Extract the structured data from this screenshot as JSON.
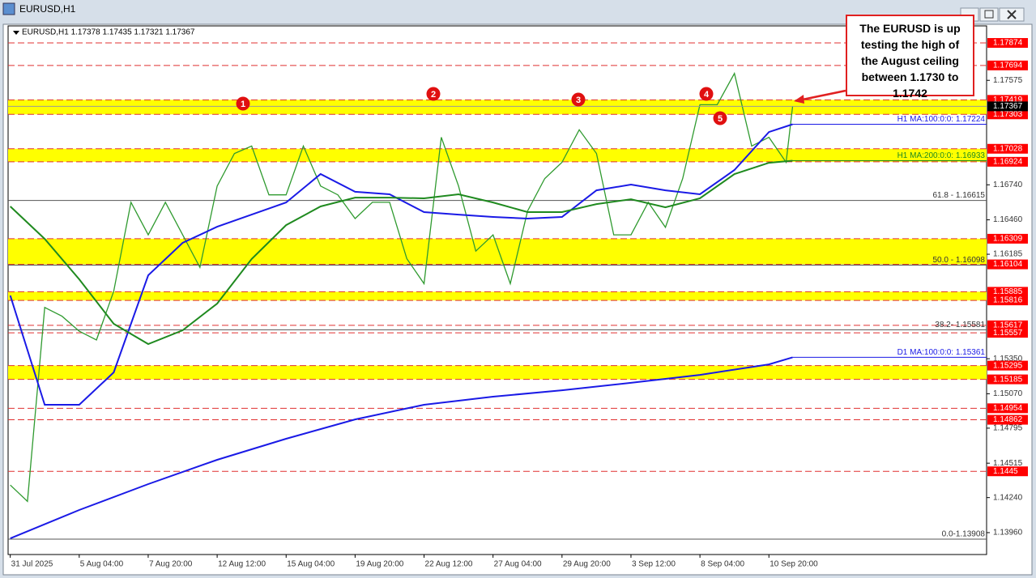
{
  "window_title": "EURUSD,H1",
  "chart_data": {
    "type": "line",
    "info": "EURUSD,H1  1.17378 1.17435 1.17321 1.17367",
    "xlim": [
      -2,
      906
    ],
    "ylim": [
      1.13785,
      1.1801
    ],
    "xticks": [
      {
        "value": 0,
        "label": "31 Jul 2025"
      },
      {
        "value": 64,
        "label": "5 Aug 04:00"
      },
      {
        "value": 128,
        "label": "7 Aug 20:00"
      },
      {
        "value": 192,
        "label": "12 Aug 12:00"
      },
      {
        "value": 256,
        "label": "15 Aug 04:00"
      },
      {
        "value": 320,
        "label": "19 Aug 20:00"
      },
      {
        "value": 384,
        "label": "22 Aug 12:00"
      },
      {
        "value": 448,
        "label": "27 Aug 04:00"
      },
      {
        "value": 512,
        "label": "29 Aug 20:00"
      },
      {
        "value": 576,
        "label": "3 Sep 12:00"
      },
      {
        "value": 640,
        "label": "8 Sep 04:00"
      },
      {
        "value": 704,
        "label": "10 Sep 20:00"
      }
    ],
    "yticks": [
      1.17575,
      {
        "value": 1.1674,
        "label": "1.16740"
      },
      {
        "value": 1.1646,
        "label": "1.16460"
      },
      1.16185,
      {
        "value": 1.1535,
        "label": "1.15350"
      },
      {
        "value": 1.1507,
        "label": "1.15070"
      },
      1.14795,
      1.14515,
      {
        "value": 1.1424,
        "label": "1.14240"
      },
      {
        "value": 1.1396,
        "label": "1.13960"
      }
    ],
    "current_price": 1.17367,
    "zones": [
      [
        1.17303,
        1.17419
      ],
      [
        1.16924,
        1.17028
      ],
      [
        1.16104,
        1.16309
      ],
      [
        1.15816,
        1.15885
      ],
      [
        1.15185,
        1.15295
      ]
    ],
    "lines": [
      1.17874,
      1.17694,
      1.15617,
      1.15557,
      1.14954,
      1.14862,
      1.1445
    ],
    "fib_levels": [
      {
        "value": 1.16615,
        "label": "61.8 - 1.16615"
      },
      {
        "value": 1.16098,
        "label": "50.0 - 1.16098"
      },
      {
        "value": 1.15581,
        "label": "38.2- 1.15581"
      },
      {
        "value": 1.13908,
        "label": "0.0-1.13908"
      }
    ],
    "series": [
      {
        "color": "#2f9a2f",
        "x": [
          0,
          16,
          32,
          48,
          64,
          80,
          96,
          112,
          128,
          144,
          160,
          176,
          192,
          208,
          224,
          240,
          256,
          272,
          288,
          304,
          320,
          336,
          352,
          368,
          384,
          400,
          416,
          432,
          448,
          464,
          480,
          496,
          512,
          528,
          544,
          560,
          576,
          592,
          608,
          624,
          640,
          656,
          672,
          688,
          704,
          720,
          726
        ],
        "values": [
          1.1434,
          1.1421,
          1.1576,
          1.1569,
          1.1557,
          1.155,
          1.1589,
          1.166,
          1.1634,
          1.166,
          1.1634,
          1.1608,
          1.1673,
          1.1699,
          1.1705,
          1.1666,
          1.1666,
          1.1705,
          1.1673,
          1.1666,
          1.1647,
          1.166,
          1.166,
          1.1615,
          1.1595,
          1.1712,
          1.1673,
          1.1621,
          1.1634,
          1.1595,
          1.1653,
          1.1679,
          1.1692,
          1.1718,
          1.1699,
          1.1634,
          1.1634,
          1.166,
          1.164,
          1.1679,
          1.1738,
          1.1738,
          1.1763,
          1.1705,
          1.1712,
          1.1692,
          1.17367
        ]
      },
      {
        "name": "H1 MA:100:0:0: 1.17224",
        "color": "#1a1ae6",
        "x": [
          0,
          32,
          64,
          96,
          128,
          160,
          192,
          224,
          256,
          288,
          320,
          352,
          384,
          416,
          448,
          480,
          512,
          544,
          576,
          608,
          640,
          672,
          704,
          726
        ],
        "values": [
          1.15855,
          1.14982,
          1.14982,
          1.15241,
          1.16017,
          1.16276,
          1.16405,
          1.16502,
          1.16599,
          1.16826,
          1.16684,
          1.16664,
          1.16522,
          1.16502,
          1.16483,
          1.1647,
          1.16483,
          1.16696,
          1.16742,
          1.16696,
          1.16664,
          1.16858,
          1.17162,
          1.17224
        ]
      },
      {
        "name": "H1 MA:200:0:0: 1.16933",
        "color": "#1f8a1f",
        "x": [
          0,
          32,
          64,
          96,
          128,
          160,
          192,
          224,
          256,
          288,
          320,
          352,
          384,
          416,
          448,
          480,
          512,
          544,
          576,
          608,
          640,
          672,
          704,
          726
        ],
        "values": [
          1.16567,
          1.16308,
          1.15985,
          1.15629,
          1.15467,
          1.15577,
          1.15791,
          1.16147,
          1.16418,
          1.16567,
          1.16638,
          1.16638,
          1.16632,
          1.16664,
          1.16599,
          1.16522,
          1.16522,
          1.16586,
          1.16625,
          1.1656,
          1.16632,
          1.16826,
          1.16916,
          1.16933
        ]
      },
      {
        "name": "D1 MA:100:0:0: 1.15361",
        "color": "#1a1ae6",
        "x": [
          0,
          64,
          128,
          192,
          256,
          320,
          384,
          448,
          512,
          576,
          640,
          704,
          726
        ],
        "values": [
          1.13914,
          1.14141,
          1.14348,
          1.14542,
          1.1471,
          1.14865,
          1.14982,
          1.15047,
          1.15098,
          1.15157,
          1.15221,
          1.15305,
          1.15361
        ]
      }
    ],
    "annotation": "The EURUSD is up testing the high of the August ceiling between 1.1730 to 1.1742",
    "markers": [
      "1",
      "2",
      "3",
      "4",
      "5"
    ]
  }
}
